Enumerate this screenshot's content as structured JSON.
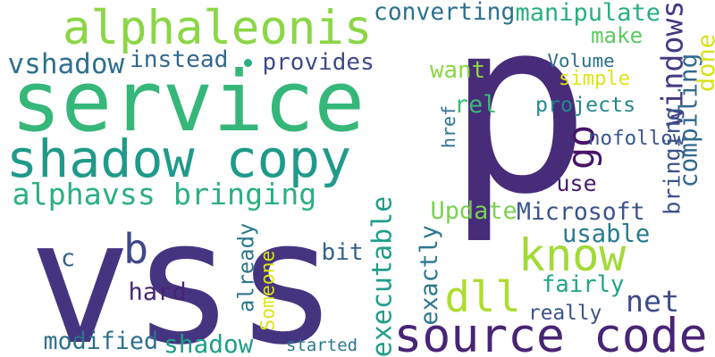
{
  "words": [
    {
      "text": "p",
      "color": "#472c7a",
      "rotated": false
    },
    {
      "text": "vss",
      "color": "#453581",
      "rotated": false
    },
    {
      "text": "service",
      "color": "#35b779",
      "rotated": false
    },
    {
      "text": "alphaleonis",
      "color": "#8bd646",
      "rotated": false
    },
    {
      "text": "shadow copy",
      "color": "#1f9a8a",
      "rotated": false
    },
    {
      "text": "source code",
      "color": "#482475",
      "rotated": false
    },
    {
      "text": "net",
      "color": "#3e4c8a",
      "rotated": false
    },
    {
      "text": "know",
      "color": "#a2da37",
      "rotated": false
    },
    {
      "text": "dll",
      "color": "#addc30",
      "rotated": false
    },
    {
      "text": "alphavss bringing",
      "color": "#2ab07f",
      "rotated": false
    },
    {
      "text": "go",
      "color": "#481467",
      "rotated": true
    },
    {
      "text": "b",
      "color": "#3f4889",
      "rotated": false
    },
    {
      "text": "c",
      "color": "#33638d",
      "rotated": false
    },
    {
      "text": "converting",
      "color": "#2c718e",
      "rotated": false
    },
    {
      "text": "manipulate",
      "color": "#29af7f",
      "rotated": false
    },
    {
      "text": "windows",
      "color": "#443983",
      "rotated": true
    },
    {
      "text": "bringing",
      "color": "#3b528b",
      "rotated": true
    },
    {
      "text": "make",
      "color": "#5ec962",
      "rotated": false
    },
    {
      "text": "compiling",
      "color": "#306a8e",
      "rotated": true
    },
    {
      "text": "done",
      "color": "#d8e219",
      "rotated": true
    },
    {
      "text": "vshadow",
      "color": "#2d708e",
      "rotated": false
    },
    {
      "text": "instead",
      "color": "#31688e",
      "rotated": false
    },
    {
      "text": "provides",
      "color": "#3e4a89",
      "rotated": false
    },
    {
      "text": "Volume",
      "color": "#2c718e",
      "rotated": false
    },
    {
      "text": "want",
      "color": "#8bd646",
      "rotated": false
    },
    {
      "text": "simple",
      "color": "#dde318",
      "rotated": false
    },
    {
      "text": "rel",
      "color": "#3bbb75",
      "rotated": false
    },
    {
      "text": "projects",
      "color": "#23898e",
      "rotated": false
    },
    {
      "text": "href",
      "color": "#2b758e",
      "rotated": true
    },
    {
      "text": "nofollow",
      "color": "#39568c",
      "rotated": false
    },
    {
      "text": "use",
      "color": "#481a6c",
      "rotated": false
    },
    {
      "text": "Update",
      "color": "#7ad151",
      "rotated": false
    },
    {
      "text": "Microsoft",
      "color": "#3a548c",
      "rotated": false
    },
    {
      "text": "usable",
      "color": "#287c8e",
      "rotated": false
    },
    {
      "text": "fairly",
      "color": "#20a386",
      "rotated": false
    },
    {
      "text": "executable",
      "color": "#1f9e89",
      "rotated": true
    },
    {
      "text": "exactly",
      "color": "#2a788e",
      "rotated": true
    },
    {
      "text": "already",
      "color": "#2a788e",
      "rotated": true
    },
    {
      "text": "Someone",
      "color": "#dde318",
      "rotated": true
    },
    {
      "text": "bit",
      "color": "#33638d",
      "rotated": false
    },
    {
      "text": "hard",
      "color": "#482475",
      "rotated": false
    },
    {
      "text": "really",
      "color": "#3b528b",
      "rotated": false
    },
    {
      "text": "modified",
      "color": "#2d708e",
      "rotated": false
    },
    {
      "text": "shadow",
      "color": "#1f9e89",
      "rotated": false
    },
    {
      "text": "started",
      "color": "#2a778e",
      "rotated": false
    }
  ]
}
